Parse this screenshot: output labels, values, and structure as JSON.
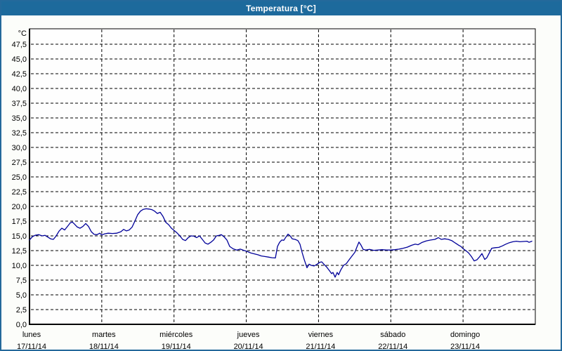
{
  "window": {
    "title": "Temperatura [°C]"
  },
  "colors": {
    "titlebar_bg": "#1d6a9c",
    "titlebar_text": "#ffffff",
    "window_border": "#24699b",
    "content_bg": "#fcfdfa",
    "plot_bg": "#fefefe",
    "plot_border": "#000000",
    "grid": "#000000",
    "line": "#000099",
    "label": "#000000"
  },
  "chart_data": {
    "type": "line",
    "title": "Temperatura [°C]",
    "ylabel": "°C",
    "xlabel": "",
    "grid": "dashed",
    "legend_position": "none",
    "y_axis": {
      "min": 0,
      "max": 50.1,
      "tick_min": 0,
      "tick_max": 47.5,
      "tick_step": 2.5,
      "unit_label": "°C",
      "decimal_separator": ","
    },
    "x_axis": {
      "unit": "days (fraction of day from lunes 00:00)",
      "range_days": 7,
      "days": [
        {
          "name": "lunes",
          "date": "17/11/14"
        },
        {
          "name": "martes",
          "date": "18/11/14"
        },
        {
          "name": "miércoles",
          "date": "19/11/14"
        },
        {
          "name": "jueves",
          "date": "20/11/14"
        },
        {
          "name": "viernes",
          "date": "21/11/14"
        },
        {
          "name": "sábado",
          "date": "22/11/14"
        },
        {
          "name": "domingo",
          "date": "23/11/14"
        }
      ]
    },
    "series": [
      {
        "name": "Temperatura",
        "color": "#000099",
        "points": [
          [
            0,
            14.3
          ],
          [
            0.039,
            14.85
          ],
          [
            0.078,
            15.1
          ],
          [
            0.126,
            15.2
          ],
          [
            0.175,
            15.0
          ],
          [
            0.214,
            15.1
          ],
          [
            0.253,
            14.8
          ],
          [
            0.292,
            14.5
          ],
          [
            0.331,
            14.4
          ],
          [
            0.369,
            15.0
          ],
          [
            0.408,
            15.8
          ],
          [
            0.447,
            16.3
          ],
          [
            0.486,
            16.0
          ],
          [
            0.525,
            16.6
          ],
          [
            0.564,
            17.2
          ],
          [
            0.593,
            17.35
          ],
          [
            0.622,
            17.0
          ],
          [
            0.661,
            16.5
          ],
          [
            0.7,
            16.3
          ],
          [
            0.739,
            16.6
          ],
          [
            0.778,
            17.1
          ],
          [
            0.817,
            16.6
          ],
          [
            0.856,
            15.7
          ],
          [
            0.894,
            15.25
          ],
          [
            0.933,
            15.2
          ],
          [
            0.972,
            15.45
          ],
          [
            1.001,
            15.15
          ],
          [
            1.04,
            15.35
          ],
          [
            1.089,
            15.45
          ],
          [
            1.147,
            15.4
          ],
          [
            1.206,
            15.45
          ],
          [
            1.264,
            15.7
          ],
          [
            1.303,
            16.1
          ],
          [
            1.342,
            15.85
          ],
          [
            1.381,
            16.0
          ],
          [
            1.42,
            16.5
          ],
          [
            1.458,
            17.5
          ],
          [
            1.497,
            18.6
          ],
          [
            1.536,
            19.2
          ],
          [
            1.575,
            19.5
          ],
          [
            1.614,
            19.6
          ],
          [
            1.653,
            19.55
          ],
          [
            1.692,
            19.45
          ],
          [
            1.731,
            19.2
          ],
          [
            1.769,
            18.8
          ],
          [
            1.808,
            19.0
          ],
          [
            1.847,
            18.3
          ],
          [
            1.886,
            17.3
          ],
          [
            1.925,
            16.9
          ],
          [
            1.964,
            16.3
          ],
          [
            2.003,
            15.9
          ],
          [
            2.042,
            15.5
          ],
          [
            2.081,
            15.0
          ],
          [
            2.119,
            14.4
          ],
          [
            2.158,
            14.2
          ],
          [
            2.197,
            14.7
          ],
          [
            2.236,
            15.0
          ],
          [
            2.275,
            14.95
          ],
          [
            2.314,
            14.7
          ],
          [
            2.353,
            15.0
          ],
          [
            2.392,
            14.4
          ],
          [
            2.431,
            13.8
          ],
          [
            2.469,
            13.6
          ],
          [
            2.508,
            13.9
          ],
          [
            2.547,
            14.3
          ],
          [
            2.586,
            15.0
          ],
          [
            2.625,
            15.1
          ],
          [
            2.654,
            15.2
          ],
          [
            2.693,
            14.85
          ],
          [
            2.732,
            14.3
          ],
          [
            2.771,
            13.2
          ],
          [
            2.819,
            12.8
          ],
          [
            2.868,
            12.6
          ],
          [
            2.917,
            12.75
          ],
          [
            2.965,
            12.55
          ],
          [
            3.014,
            12.35
          ],
          [
            3.063,
            12.1
          ],
          [
            3.111,
            11.95
          ],
          [
            3.16,
            11.8
          ],
          [
            3.208,
            11.6
          ],
          [
            3.257,
            11.5
          ],
          [
            3.306,
            11.4
          ],
          [
            3.354,
            11.3
          ],
          [
            3.403,
            11.25
          ],
          [
            3.432,
            13.2
          ],
          [
            3.461,
            13.9
          ],
          [
            3.49,
            14.3
          ],
          [
            3.519,
            14.25
          ],
          [
            3.549,
            14.8
          ],
          [
            3.578,
            15.3
          ],
          [
            3.607,
            15.0
          ],
          [
            3.636,
            14.5
          ],
          [
            3.675,
            14.4
          ],
          [
            3.714,
            14.2
          ],
          [
            3.743,
            13.6
          ],
          [
            3.772,
            12.2
          ],
          [
            3.801,
            11.0
          ],
          [
            3.84,
            9.6
          ],
          [
            3.869,
            10.2
          ],
          [
            3.899,
            10.0
          ],
          [
            3.938,
            9.9
          ],
          [
            3.976,
            10.15
          ],
          [
            4.015,
            10.5
          ],
          [
            4.044,
            10.6
          ],
          [
            4.074,
            10.2
          ],
          [
            4.113,
            9.7
          ],
          [
            4.151,
            9.1
          ],
          [
            4.181,
            8.6
          ],
          [
            4.2,
            8.8
          ],
          [
            4.229,
            8.0
          ],
          [
            4.258,
            8.8
          ],
          [
            4.278,
            8.4
          ],
          [
            4.307,
            9.2
          ],
          [
            4.346,
            10.0
          ],
          [
            4.385,
            10.3
          ],
          [
            4.424,
            10.95
          ],
          [
            4.463,
            11.6
          ],
          [
            4.502,
            12.2
          ],
          [
            4.531,
            13.1
          ],
          [
            4.56,
            13.95
          ],
          [
            4.589,
            13.4
          ],
          [
            4.618,
            12.7
          ],
          [
            4.657,
            12.6
          ],
          [
            4.706,
            12.7
          ],
          [
            4.764,
            12.55
          ],
          [
            4.822,
            12.6
          ],
          [
            4.881,
            12.65
          ],
          [
            4.939,
            12.6
          ],
          [
            4.997,
            12.6
          ],
          [
            5.056,
            12.65
          ],
          [
            5.114,
            12.75
          ],
          [
            5.172,
            12.9
          ],
          [
            5.231,
            13.1
          ],
          [
            5.289,
            13.4
          ],
          [
            5.338,
            13.6
          ],
          [
            5.377,
            13.5
          ],
          [
            5.435,
            13.9
          ],
          [
            5.493,
            14.15
          ],
          [
            5.552,
            14.3
          ],
          [
            5.61,
            14.4
          ],
          [
            5.659,
            14.7
          ],
          [
            5.698,
            14.4
          ],
          [
            5.746,
            14.5
          ],
          [
            5.795,
            14.4
          ],
          [
            5.843,
            14.2
          ],
          [
            5.892,
            13.8
          ],
          [
            5.941,
            13.4
          ],
          [
            5.97,
            13.2
          ],
          [
            5.999,
            12.85
          ],
          [
            6.038,
            12.5
          ],
          [
            6.077,
            12.1
          ],
          [
            6.115,
            11.5
          ],
          [
            6.154,
            10.75
          ],
          [
            6.193,
            10.95
          ],
          [
            6.232,
            11.5
          ],
          [
            6.261,
            12.0
          ],
          [
            6.3,
            11.0
          ],
          [
            6.329,
            11.3
          ],
          [
            6.359,
            12.0
          ],
          [
            6.397,
            12.9
          ],
          [
            6.446,
            13.0
          ],
          [
            6.495,
            13.05
          ],
          [
            6.543,
            13.3
          ],
          [
            6.592,
            13.6
          ],
          [
            6.641,
            13.85
          ],
          [
            6.689,
            14.0
          ],
          [
            6.738,
            14.1
          ],
          [
            6.787,
            14.0
          ],
          [
            6.835,
            14.05
          ],
          [
            6.884,
            14.1
          ],
          [
            6.913,
            13.9
          ],
          [
            6.952,
            14.1
          ]
        ]
      }
    ]
  }
}
